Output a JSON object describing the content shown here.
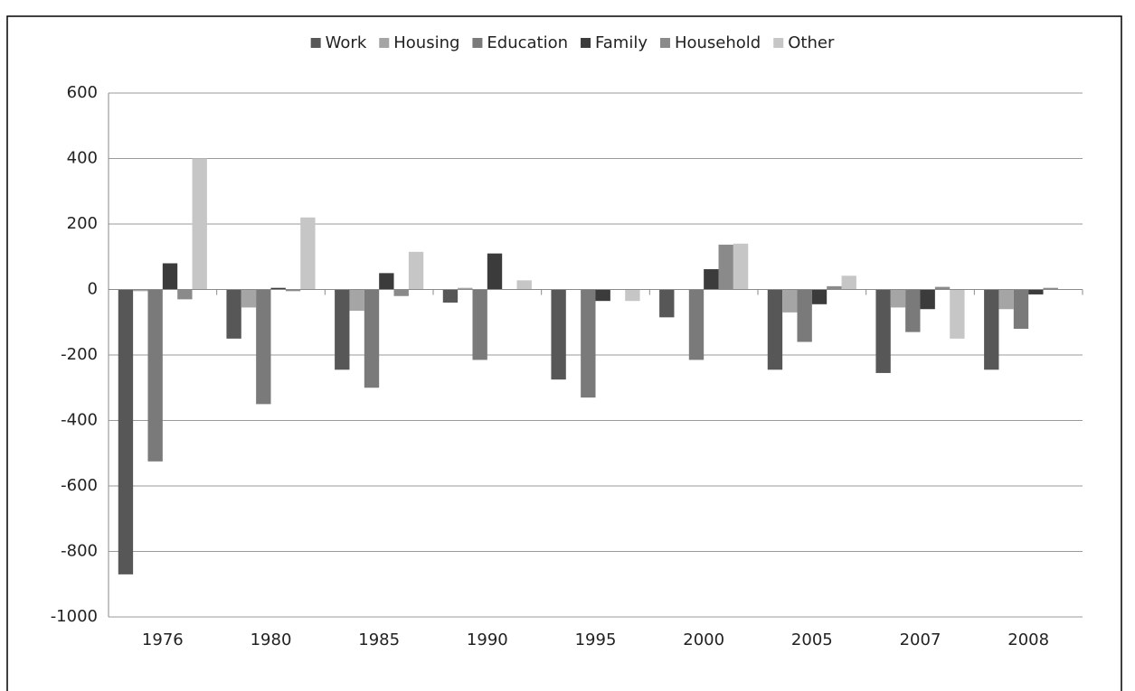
{
  "chart_data": {
    "type": "bar",
    "categories": [
      "1976",
      "1980",
      "1985",
      "1990",
      "1995",
      "2000",
      "2005",
      "2007",
      "2008"
    ],
    "series": [
      {
        "name": "Work",
        "color": "#575757",
        "values": [
          -870,
          -150,
          -245,
          -40,
          -275,
          -85,
          -245,
          -255,
          -245
        ]
      },
      {
        "name": "Housing",
        "color": "#a5a5a5",
        "values": [
          -5,
          -55,
          -65,
          5,
          0,
          0,
          -70,
          -55,
          -60
        ]
      },
      {
        "name": "Education",
        "color": "#7a7a7a",
        "values": [
          -525,
          -350,
          -300,
          -215,
          -330,
          -215,
          -160,
          -130,
          -120
        ]
      },
      {
        "name": "Family",
        "color": "#3b3b3b",
        "values": [
          80,
          5,
          50,
          110,
          -35,
          62,
          -45,
          -60,
          -15
        ]
      },
      {
        "name": "Household",
        "color": "#8a8a8a",
        "values": [
          -30,
          -5,
          -20,
          0,
          0,
          137,
          10,
          8,
          5
        ]
      },
      {
        "name": "Other",
        "color": "#c6c6c6",
        "values": [
          400,
          220,
          115,
          28,
          -35,
          140,
          42,
          -150,
          0
        ]
      }
    ],
    "ylim": [
      -1000,
      600
    ],
    "yticks": [
      -1000,
      -800,
      -600,
      -400,
      -200,
      0,
      200,
      400,
      600
    ],
    "grid": true,
    "legend": "top"
  }
}
